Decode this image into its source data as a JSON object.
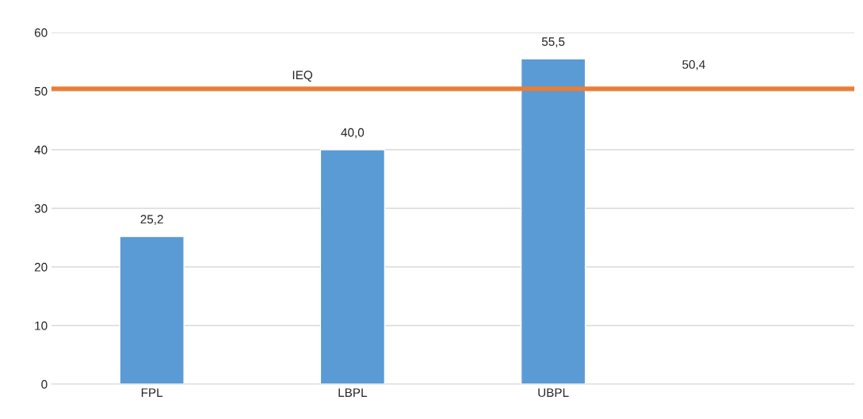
{
  "chart_data": {
    "type": "bar",
    "categories": [
      "FPL",
      "LBPL",
      "UBPL",
      null
    ],
    "series": [
      {
        "color": "#5b9bd5",
        "values": [
          25.2,
          40.0,
          55.5,
          null
        ],
        "value_labels": [
          "25,2",
          "40,0",
          "55,5",
          null
        ]
      }
    ],
    "ref_lines": [
      {
        "axis": "y",
        "value": 50.4,
        "label": "IEQ",
        "color": "#ed7d31"
      }
    ],
    "annotations": [
      {
        "text": "50,4",
        "y": 50.4
      }
    ],
    "ylim": [
      0,
      60
    ],
    "yticks": [
      0,
      10,
      20,
      30,
      40,
      50,
      60
    ],
    "grid": "y",
    "legend": false
  }
}
